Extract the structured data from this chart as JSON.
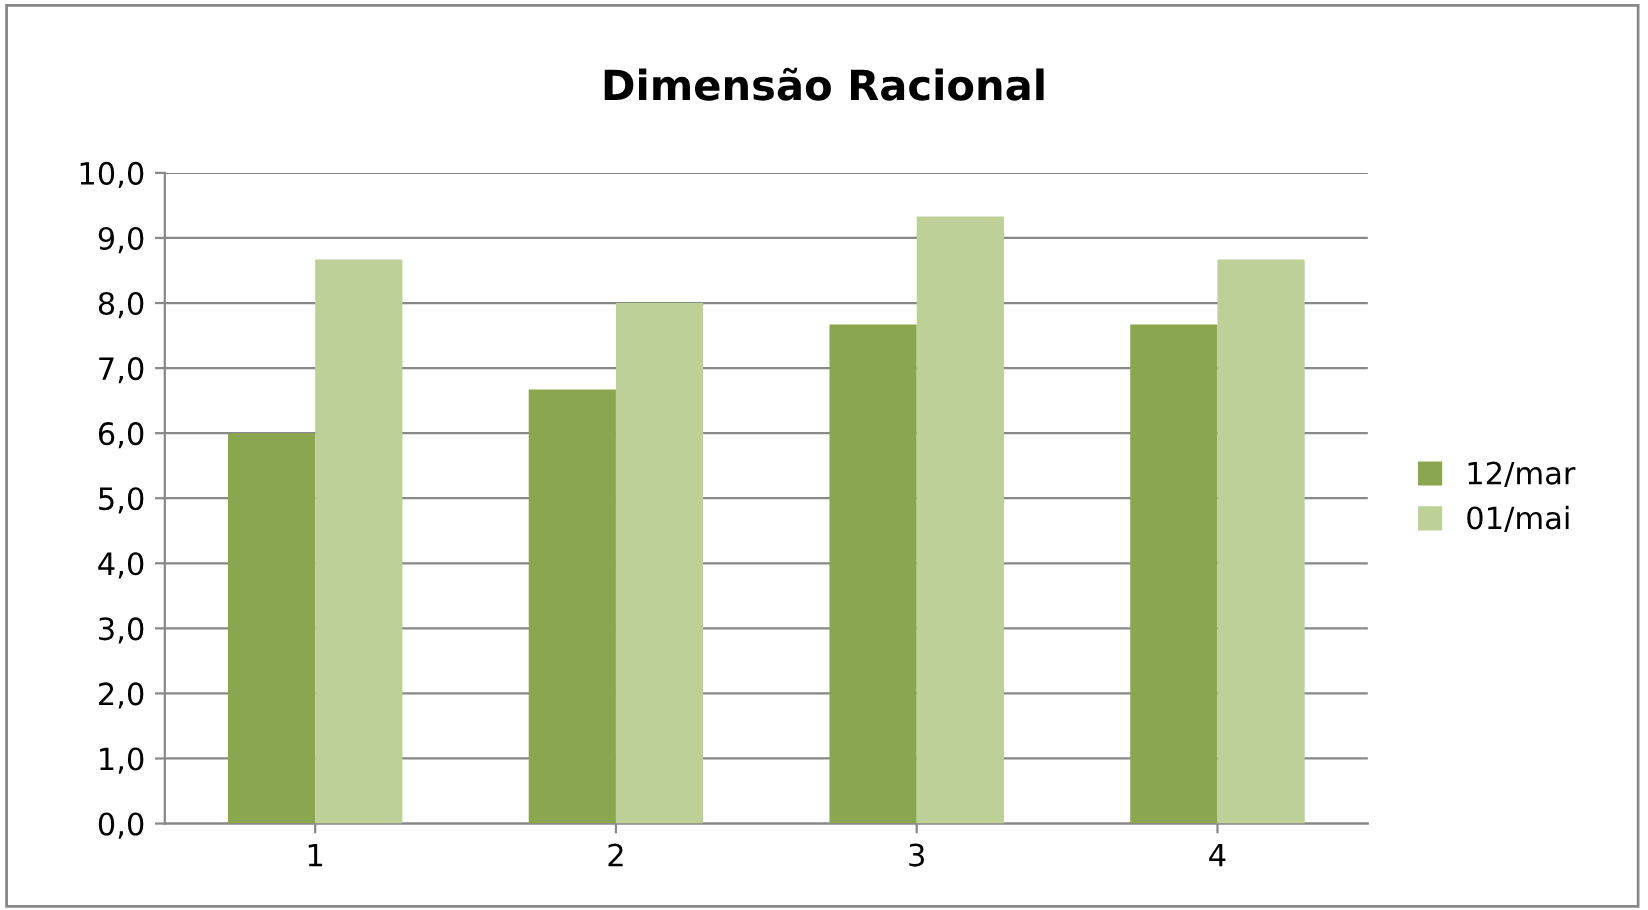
{
  "chart_data": {
    "type": "bar",
    "title": "Dimensão Racional",
    "categories": [
      "1",
      "2",
      "3",
      "4"
    ],
    "series": [
      {
        "name": "12/mar",
        "color": "#8aa64f",
        "values": [
          6.0,
          6.67,
          7.67,
          7.67
        ]
      },
      {
        "name": "01/mai",
        "color": "#bcd097",
        "values": [
          8.67,
          8.0,
          9.33,
          8.67
        ]
      }
    ],
    "ylim": [
      0,
      10
    ],
    "yticks": [
      {
        "value": 0,
        "label": "0,0"
      },
      {
        "value": 1,
        "label": "1,0"
      },
      {
        "value": 2,
        "label": "2,0"
      },
      {
        "value": 3,
        "label": "3,0"
      },
      {
        "value": 4,
        "label": "4,0"
      },
      {
        "value": 5,
        "label": "5,0"
      },
      {
        "value": 6,
        "label": "6,0"
      },
      {
        "value": 7,
        "label": "7,0"
      },
      {
        "value": 8,
        "label": "8,0"
      },
      {
        "value": 9,
        "label": "9,0"
      },
      {
        "value": 10,
        "label": "10,0"
      }
    ],
    "grid": "y",
    "legend": "right"
  }
}
